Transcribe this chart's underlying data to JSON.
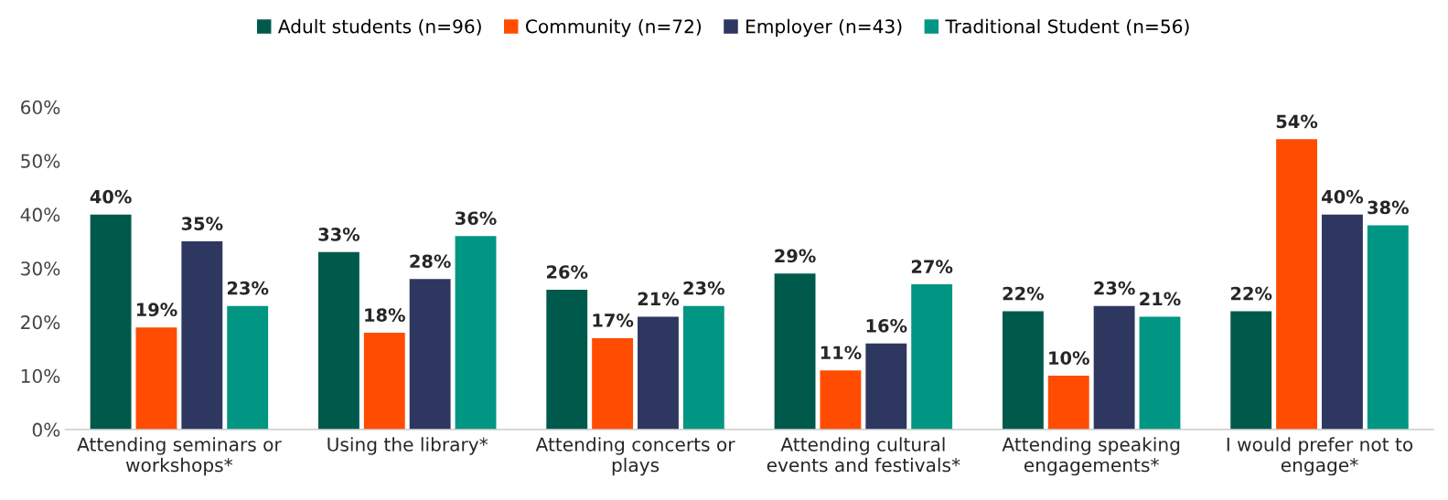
{
  "chart_data": {
    "type": "bar",
    "categories": [
      "Attending seminars or\nworkshops*",
      "Using the library*",
      "Attending concerts or\nplays",
      "Attending cultural\nevents and festivals*",
      "Attending speaking\nengagements*",
      "I would prefer not to\nengage*"
    ],
    "series": [
      {
        "name": "Adult students (n=96)",
        "color": "#005a4b",
        "values": [
          40,
          33,
          26,
          29,
          22,
          22
        ],
        "value_labels": [
          "40%",
          "33%",
          "26%",
          "29%",
          "22%",
          "22%"
        ]
      },
      {
        "name": "Community (n=72)",
        "color": "#ff4c00",
        "values": [
          19,
          18,
          17,
          11,
          10,
          54
        ],
        "value_labels": [
          "19%",
          "18%",
          "17%",
          "11%",
          "10%",
          "54%"
        ]
      },
      {
        "name": "Employer (n=43)",
        "color": "#2e3760",
        "values": [
          35,
          28,
          21,
          16,
          23,
          40
        ],
        "value_labels": [
          "35%",
          "28%",
          "21%",
          "16%",
          "23%",
          "40%"
        ]
      },
      {
        "name": "Traditional Student (n=56)",
        "color": "#009683",
        "values": [
          23,
          36,
          23,
          27,
          21,
          38
        ],
        "value_labels": [
          "23%",
          "36%",
          "23%",
          "27%",
          "21%",
          "38%"
        ]
      }
    ],
    "ylim": [
      0,
      60
    ],
    "yticks": [
      {
        "value": 0,
        "label": "0%"
      },
      {
        "value": 10,
        "label": "10%"
      },
      {
        "value": 20,
        "label": "20%"
      },
      {
        "value": 30,
        "label": "30%"
      },
      {
        "value": 40,
        "label": "40%"
      },
      {
        "value": 50,
        "label": "50%"
      },
      {
        "value": 60,
        "label": "60%"
      }
    ],
    "grid": false,
    "legend": "top"
  }
}
